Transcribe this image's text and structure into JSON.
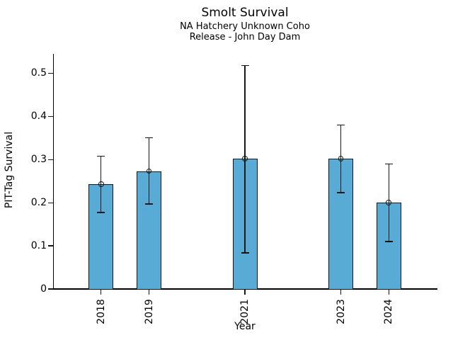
{
  "chart_data": {
    "type": "bar",
    "title": "Smolt Survival",
    "subtitle1": "NA Hatchery Unknown Coho",
    "subtitle2": "Release - John Day Dam",
    "xlabel": "Year",
    "ylabel": "PIT-Tag Survival",
    "categories": [
      "2018",
      "2019",
      "2021",
      "2023",
      "2024"
    ],
    "x_numeric": [
      2018,
      2019,
      2021,
      2023,
      2024
    ],
    "values": [
      0.243,
      0.273,
      0.302,
      0.302,
      0.2
    ],
    "error_low": [
      0.177,
      0.197,
      0.084,
      0.223,
      0.11
    ],
    "error_high": [
      0.308,
      0.35,
      0.518,
      0.38,
      0.29
    ],
    "yticks": [
      0,
      0.1,
      0.2,
      0.3,
      0.4,
      0.5
    ],
    "ytick_labels": [
      "0",
      "0.1",
      "0.2",
      "0.3",
      "0.4",
      "0.5"
    ],
    "ylim": [
      0,
      0.545
    ],
    "xlim": [
      2017,
      2025
    ],
    "bar_color": "#58ABD5",
    "edge_color": "#161616",
    "marker": "open-circle",
    "grid": false,
    "legend_position": "none"
  }
}
